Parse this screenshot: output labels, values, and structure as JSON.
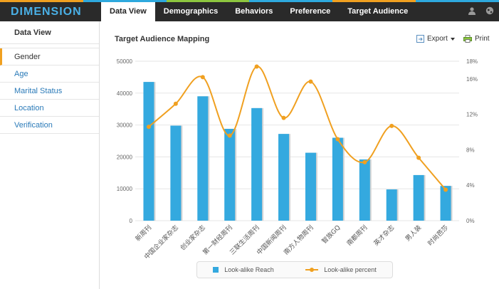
{
  "app": {
    "logo": "DIMENSION",
    "stripe_colors": [
      "#f0a020",
      "#2ea9de",
      "#8dc63f",
      "#2ea9de",
      "#f0a020",
      "#2ea9de"
    ]
  },
  "nav": {
    "tabs": [
      "Data View",
      "Demographics",
      "Behaviors",
      "Preference",
      "Target Audience"
    ],
    "active": "Data View"
  },
  "topbar_icons": [
    "user-icon",
    "globe-icon"
  ],
  "sidebar": {
    "title": "Data View",
    "items": [
      "Gender",
      "Age",
      "Marital Status",
      "Location",
      "Verification"
    ],
    "active": "Gender"
  },
  "content": {
    "title": "Target Audience Mapping",
    "export_label": "Export",
    "print_label": "Print"
  },
  "chart_data": {
    "type": "bar",
    "categories": [
      "新周刊",
      "中国企业家杂志",
      "创业家杂志",
      "第一财经周刊",
      "三联生活周刊",
      "中国新闻周刊",
      "南方人物周刊",
      "智族GQ",
      "南都周刊",
      "英才杂志",
      "男人装",
      "时尚芭莎"
    ],
    "series": [
      {
        "name": "Look-alike Reach",
        "type": "bar",
        "axis": "left",
        "color": "#34a9df",
        "values": [
          43500,
          29800,
          39000,
          28800,
          35300,
          27200,
          21300,
          26000,
          19200,
          9800,
          14300,
          10900
        ]
      },
      {
        "name": "Look-alike percent",
        "type": "line",
        "axis": "right",
        "color": "#f0a020",
        "values": [
          10.6,
          13.2,
          16.2,
          9.6,
          17.4,
          11.6,
          15.7,
          9.2,
          6.6,
          10.7,
          7.1,
          3.5
        ]
      }
    ],
    "y_left": {
      "min": 0,
      "max": 50000,
      "ticks": [
        "0",
        "10000",
        "20000",
        "30000",
        "40000",
        "50000"
      ]
    },
    "y_right": {
      "min": 0,
      "max": 18,
      "ticks": [
        "0%",
        "4%",
        "8%",
        "12%",
        "16%",
        "18%"
      ]
    },
    "grid": true,
    "legend": "bottom-center"
  }
}
